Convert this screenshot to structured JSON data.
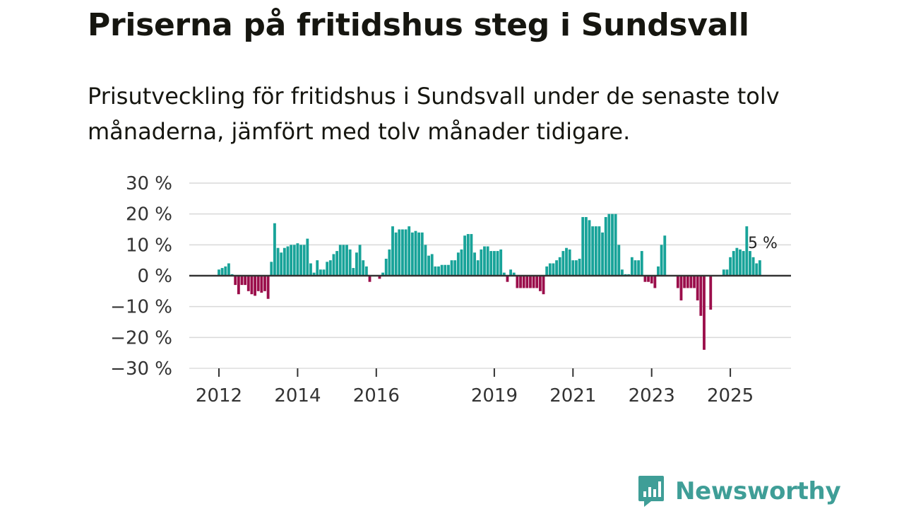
{
  "chart_data": {
    "type": "bar",
    "title": "Priserna på fritidshus steg i Sundsvall",
    "subtitle": "Prisutveckling för fritidshus i Sundsvall under de senaste tolv månaderna, jämfört med tolv månader tidigare.",
    "ylim": [
      -30,
      30
    ],
    "y_ticks": [
      30,
      20,
      10,
      0,
      -10,
      -20,
      -30
    ],
    "y_tick_labels": [
      "30 %",
      "20 %",
      "10 %",
      "0 %",
      "−10 %",
      "−20 %",
      "−30 %"
    ],
    "x_ticks": [
      2012,
      2014,
      2016,
      2019,
      2021,
      2023,
      2025
    ],
    "x_tick_labels": [
      "2012",
      "2014",
      "2016",
      "2019",
      "2021",
      "2023",
      "2025"
    ],
    "x_start": 2011.5,
    "positive_color": "#18a399",
    "negative_color": "#9b0e4b",
    "annotation": {
      "label": "5 %",
      "value": 5
    },
    "values": [
      null,
      null,
      null,
      null,
      null,
      null,
      2,
      2.5,
      3,
      4,
      0.5,
      -3,
      -6,
      -3,
      -3,
      -5,
      -6,
      -6.5,
      -5,
      -5.5,
      -5,
      -7.5,
      4.5,
      17,
      9,
      7.5,
      9,
      9.5,
      10,
      10,
      10.5,
      10,
      10,
      12,
      4,
      1,
      5,
      2,
      2,
      4.5,
      5,
      7,
      8,
      10,
      10,
      10,
      8.5,
      2.5,
      7.5,
      10,
      5,
      3,
      -2,
      0,
      0,
      -1,
      1,
      5.5,
      8.5,
      16,
      14,
      15,
      15,
      15,
      16,
      14,
      14.5,
      14,
      14,
      10,
      6.5,
      7,
      3,
      3,
      3.5,
      3.5,
      3.5,
      5,
      5,
      7.5,
      8.5,
      13,
      13.5,
      13.5,
      7.5,
      5,
      8.5,
      9.5,
      9.5,
      8,
      8,
      8,
      8.5,
      1,
      -2,
      2,
      1,
      -4,
      -4,
      -4,
      -4,
      -4,
      -4,
      -4,
      -5,
      -6,
      3,
      4,
      4,
      5,
      6,
      8,
      9,
      8.5,
      5,
      5,
      5.5,
      19,
      19,
      18,
      16,
      16,
      16,
      14,
      19,
      20,
      20,
      20,
      10,
      2,
      0.5,
      0.5,
      6,
      5,
      5,
      8,
      -2,
      -2,
      -2.5,
      -4,
      3,
      10,
      13,
      null,
      null,
      null,
      -4,
      -8,
      -4,
      -4,
      -4,
      -4,
      -8,
      -13,
      -24,
      null,
      -11,
      null,
      null,
      null,
      2,
      2,
      6,
      8,
      9,
      8.5,
      8,
      16,
      8,
      6,
      4,
      5
    ]
  },
  "brand": {
    "name": "Newsworthy",
    "color": "#3f9e97"
  }
}
